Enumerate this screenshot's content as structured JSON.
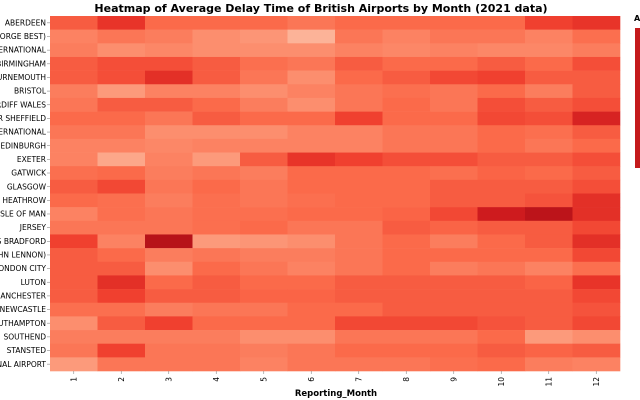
{
  "chart_data": {
    "type": "heatmap",
    "title": "Heatmap of Average Delay Time of British Airports by Month (2021 data)",
    "xlabel": "Reporting_Month",
    "ylabel": "",
    "legend_title": "A",
    "x": [
      "1",
      "2",
      "3",
      "4",
      "5",
      "6",
      "7",
      "8",
      "9",
      "10",
      "11",
      "12"
    ],
    "y": [
      "ABERDEEN",
      "GEORGE BEST)",
      "ERNATIONAL",
      "BIRMINGHAM",
      "URNEMOUTH",
      "BRISTOL",
      "ARDIFF WALES",
      "ER SHEFFIELD",
      "ERNATIONAL",
      "EDINBURGH",
      "EXETER",
      "GATWICK",
      "GLASGOW",
      "HEATHROW",
      "ISLE OF MAN",
      "JERSEY",
      "DS BRADFORD",
      "HN LENNON)",
      "LONDON CITY",
      "LUTON",
      "MANCHESTER",
      "NEWCASTLE",
      "OUTHAMPTON",
      "SOUTHEND",
      "STANSTED",
      "ONAL AIRPORT"
    ],
    "values": [
      [
        0.55,
        0.7,
        0.5,
        0.5,
        0.5,
        0.45,
        0.5,
        0.5,
        0.5,
        0.5,
        0.65,
        0.7
      ],
      [
        0.4,
        0.45,
        0.42,
        0.35,
        0.32,
        0.2,
        0.45,
        0.4,
        0.45,
        0.45,
        0.4,
        0.48
      ],
      [
        0.42,
        0.35,
        0.38,
        0.35,
        0.35,
        0.35,
        0.4,
        0.38,
        0.4,
        0.38,
        0.38,
        0.42
      ],
      [
        0.55,
        0.6,
        0.6,
        0.55,
        0.48,
        0.45,
        0.55,
        0.5,
        0.5,
        0.55,
        0.5,
        0.6
      ],
      [
        0.55,
        0.6,
        0.72,
        0.55,
        0.45,
        0.35,
        0.5,
        0.55,
        0.62,
        0.65,
        0.55,
        0.55
      ],
      [
        0.42,
        0.3,
        0.4,
        0.4,
        0.35,
        0.4,
        0.45,
        0.48,
        0.45,
        0.5,
        0.42,
        0.55
      ],
      [
        0.45,
        0.55,
        0.55,
        0.5,
        0.42,
        0.35,
        0.45,
        0.5,
        0.45,
        0.6,
        0.55,
        0.6
      ],
      [
        0.5,
        0.5,
        0.45,
        0.55,
        0.5,
        0.5,
        0.65,
        0.5,
        0.5,
        0.62,
        0.6,
        0.78
      ],
      [
        0.45,
        0.45,
        0.35,
        0.35,
        0.35,
        0.4,
        0.4,
        0.45,
        0.45,
        0.5,
        0.48,
        0.55
      ],
      [
        0.4,
        0.4,
        0.38,
        0.4,
        0.4,
        0.4,
        0.4,
        0.45,
        0.45,
        0.5,
        0.45,
        0.5
      ],
      [
        0.4,
        0.25,
        0.4,
        0.3,
        0.55,
        0.7,
        0.65,
        0.6,
        0.6,
        0.55,
        0.55,
        0.6
      ],
      [
        0.48,
        0.5,
        0.42,
        0.45,
        0.42,
        0.5,
        0.5,
        0.5,
        0.48,
        0.52,
        0.5,
        0.55
      ],
      [
        0.55,
        0.62,
        0.45,
        0.5,
        0.45,
        0.5,
        0.5,
        0.5,
        0.55,
        0.55,
        0.55,
        0.6
      ],
      [
        0.5,
        0.48,
        0.42,
        0.48,
        0.45,
        0.48,
        0.5,
        0.5,
        0.55,
        0.55,
        0.58,
        0.72
      ],
      [
        0.4,
        0.48,
        0.45,
        0.48,
        0.48,
        0.5,
        0.5,
        0.52,
        0.62,
        0.82,
        0.9,
        0.72
      ],
      [
        0.45,
        0.45,
        0.45,
        0.48,
        0.5,
        0.45,
        0.45,
        0.55,
        0.52,
        0.55,
        0.55,
        0.62
      ],
      [
        0.65,
        0.4,
        0.92,
        0.3,
        0.32,
        0.35,
        0.45,
        0.5,
        0.42,
        0.5,
        0.55,
        0.72
      ],
      [
        0.55,
        0.5,
        0.42,
        0.45,
        0.42,
        0.42,
        0.45,
        0.5,
        0.5,
        0.5,
        0.5,
        0.62
      ],
      [
        0.55,
        0.55,
        0.35,
        0.5,
        0.45,
        0.4,
        0.45,
        0.5,
        0.42,
        0.45,
        0.4,
        0.48
      ],
      [
        0.55,
        0.72,
        0.5,
        0.55,
        0.5,
        0.5,
        0.55,
        0.55,
        0.55,
        0.55,
        0.52,
        0.7
      ],
      [
        0.55,
        0.65,
        0.55,
        0.55,
        0.52,
        0.52,
        0.55,
        0.55,
        0.55,
        0.55,
        0.55,
        0.62
      ],
      [
        0.48,
        0.48,
        0.42,
        0.45,
        0.45,
        0.5,
        0.5,
        0.55,
        0.55,
        0.55,
        0.55,
        0.58
      ],
      [
        0.35,
        0.55,
        0.65,
        0.5,
        0.5,
        0.5,
        0.62,
        0.62,
        0.62,
        0.58,
        0.55,
        0.62
      ],
      [
        0.42,
        0.42,
        0.42,
        0.42,
        0.35,
        0.35,
        0.45,
        0.45,
        0.45,
        0.5,
        0.3,
        0.35
      ],
      [
        0.45,
        0.65,
        0.45,
        0.45,
        0.42,
        0.45,
        0.5,
        0.5,
        0.5,
        0.55,
        0.52,
        0.55
      ],
      [
        0.3,
        0.45,
        0.45,
        0.45,
        0.4,
        0.45,
        0.45,
        0.45,
        0.48,
        0.5,
        0.42,
        0.4
      ]
    ],
    "vmin": 0,
    "vmax": 1,
    "colorscale": [
      "#fff5f0",
      "#fcbba1",
      "#fc9272",
      "#fb6a4a",
      "#ef3b2c",
      "#cb181d",
      "#a50f15"
    ]
  }
}
